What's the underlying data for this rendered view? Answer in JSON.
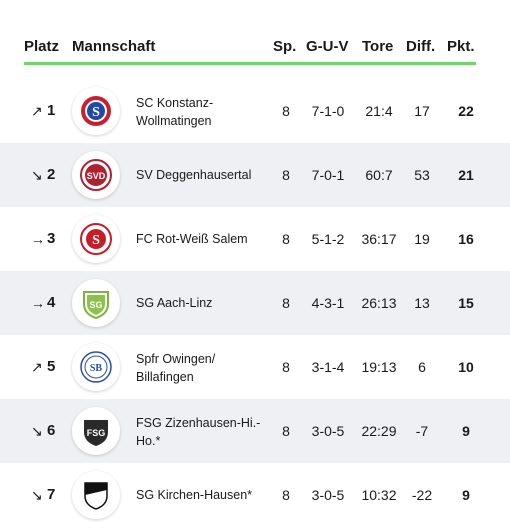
{
  "header": {
    "platz": "Platz",
    "mannschaft": "Mannschaft",
    "sp": "Sp.",
    "guv": "G-U-V",
    "tore": "Tore",
    "diff": "Diff.",
    "pkt": "Pkt."
  },
  "colors": {
    "accent_line": "#6ed66b",
    "alt_row": "#eef0f3"
  },
  "rows": [
    {
      "trend": "↗",
      "trend_icon": "arrow-up-right-icon",
      "rank": "1",
      "team": "SC Konstanz-Wollmatingen",
      "logo_text": "S",
      "sp": "8",
      "guv": "7-1-0",
      "tore": "21:4",
      "diff": "17",
      "pkt": "22"
    },
    {
      "trend": "↘",
      "trend_icon": "arrow-down-right-icon",
      "rank": "2",
      "team": "SV Deggenhausertal",
      "logo_text": "SVD",
      "sp": "8",
      "guv": "7-0-1",
      "tore": "60:7",
      "diff": "53",
      "pkt": "21"
    },
    {
      "trend": "→",
      "trend_icon": "arrow-right-icon",
      "rank": "3",
      "team": "FC Rot-Weiß Salem",
      "logo_text": "S",
      "sp": "8",
      "guv": "5-1-2",
      "tore": "36:17",
      "diff": "19",
      "pkt": "16"
    },
    {
      "trend": "→",
      "trend_icon": "arrow-right-icon",
      "rank": "4",
      "team": "SG Aach-Linz",
      "logo_text": "SG",
      "sp": "8",
      "guv": "4-3-1",
      "tore": "26:13",
      "diff": "13",
      "pkt": "15"
    },
    {
      "trend": "↗",
      "trend_icon": "arrow-up-right-icon",
      "rank": "5",
      "team": "Spfr Owingen/ Billafingen",
      "logo_text": "SB",
      "sp": "8",
      "guv": "3-1-4",
      "tore": "19:13",
      "diff": "6",
      "pkt": "10"
    },
    {
      "trend": "↘",
      "trend_icon": "arrow-down-right-icon",
      "rank": "6",
      "team": "FSG Zizenhausen-Hi.-Ho.*",
      "logo_text": "FSG",
      "sp": "8",
      "guv": "3-0-5",
      "tore": "22:29",
      "diff": "-7",
      "pkt": "9"
    },
    {
      "trend": "↘",
      "trend_icon": "arrow-down-right-icon",
      "rank": "7",
      "team": "SG Kirchen-Hausen*",
      "logo_text": "",
      "sp": "8",
      "guv": "3-0-5",
      "tore": "10:32",
      "diff": "-22",
      "pkt": "9"
    }
  ]
}
